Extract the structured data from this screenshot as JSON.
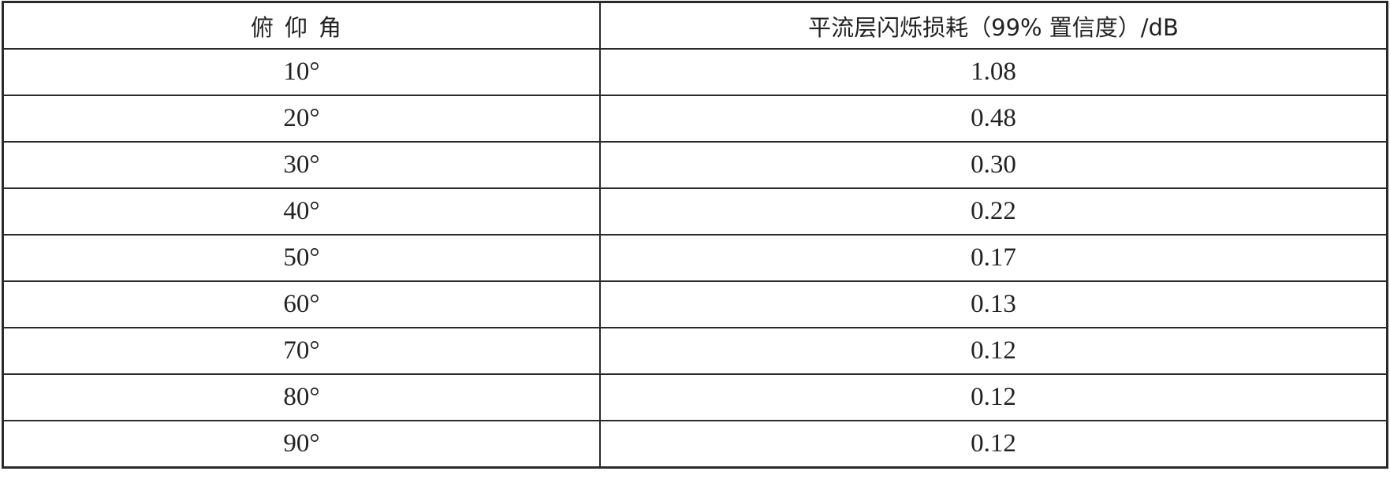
{
  "table": {
    "headers": [
      "俯仰角",
      "平流层闪烁损耗（99% 置信度）/dB"
    ],
    "rows": [
      [
        "10°",
        "1.08"
      ],
      [
        "20°",
        "0.48"
      ],
      [
        "30°",
        "0.30"
      ],
      [
        "40°",
        "0.22"
      ],
      [
        "50°",
        "0.17"
      ],
      [
        "60°",
        "0.13"
      ],
      [
        "70°",
        "0.12"
      ],
      [
        "80°",
        "0.12"
      ],
      [
        "90°",
        "0.12"
      ]
    ]
  }
}
